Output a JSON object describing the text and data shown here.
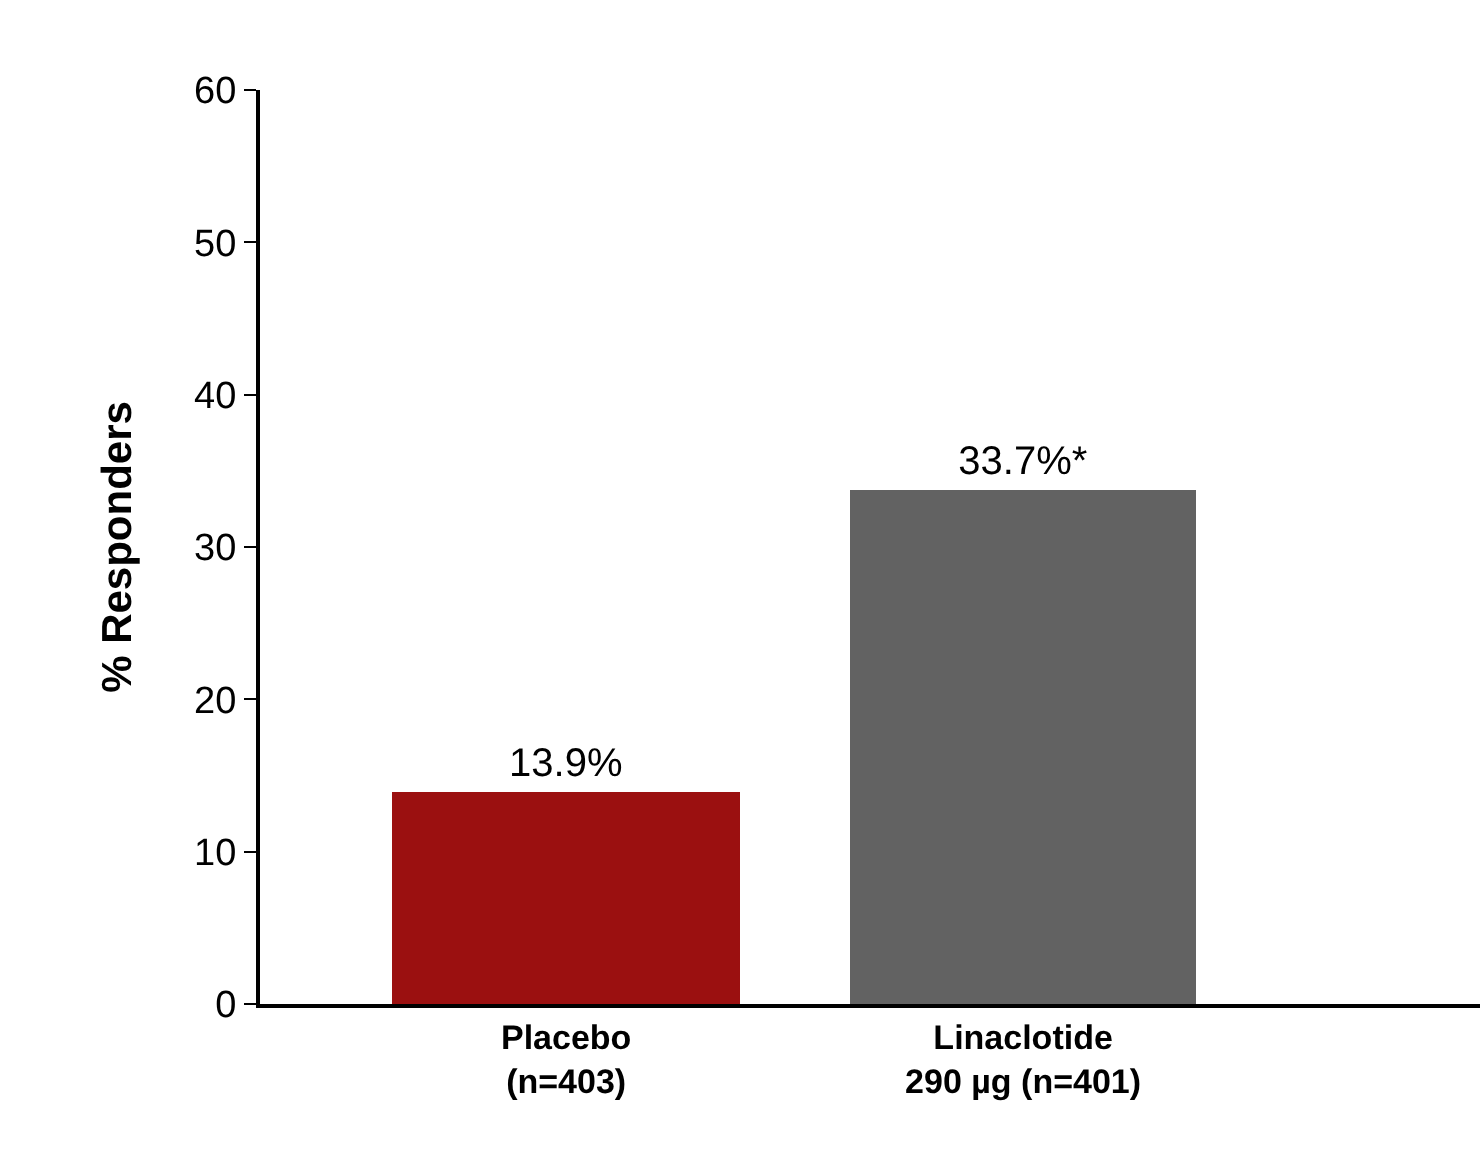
{
  "chart_data": {
    "type": "bar",
    "ylabel": "% Responders",
    "categories": [
      "Placebo\n(n=403)",
      "Linaclotide\n290 µg (n=401)"
    ],
    "values": [
      13.9,
      33.7
    ],
    "colors": [
      "#9b1010",
      "#626262"
    ],
    "value_labels": [
      "13.9%",
      "33.7%*"
    ],
    "ylim": [
      0,
      60
    ],
    "yticks": [
      0,
      10,
      20,
      30,
      40,
      50,
      60
    ]
  }
}
